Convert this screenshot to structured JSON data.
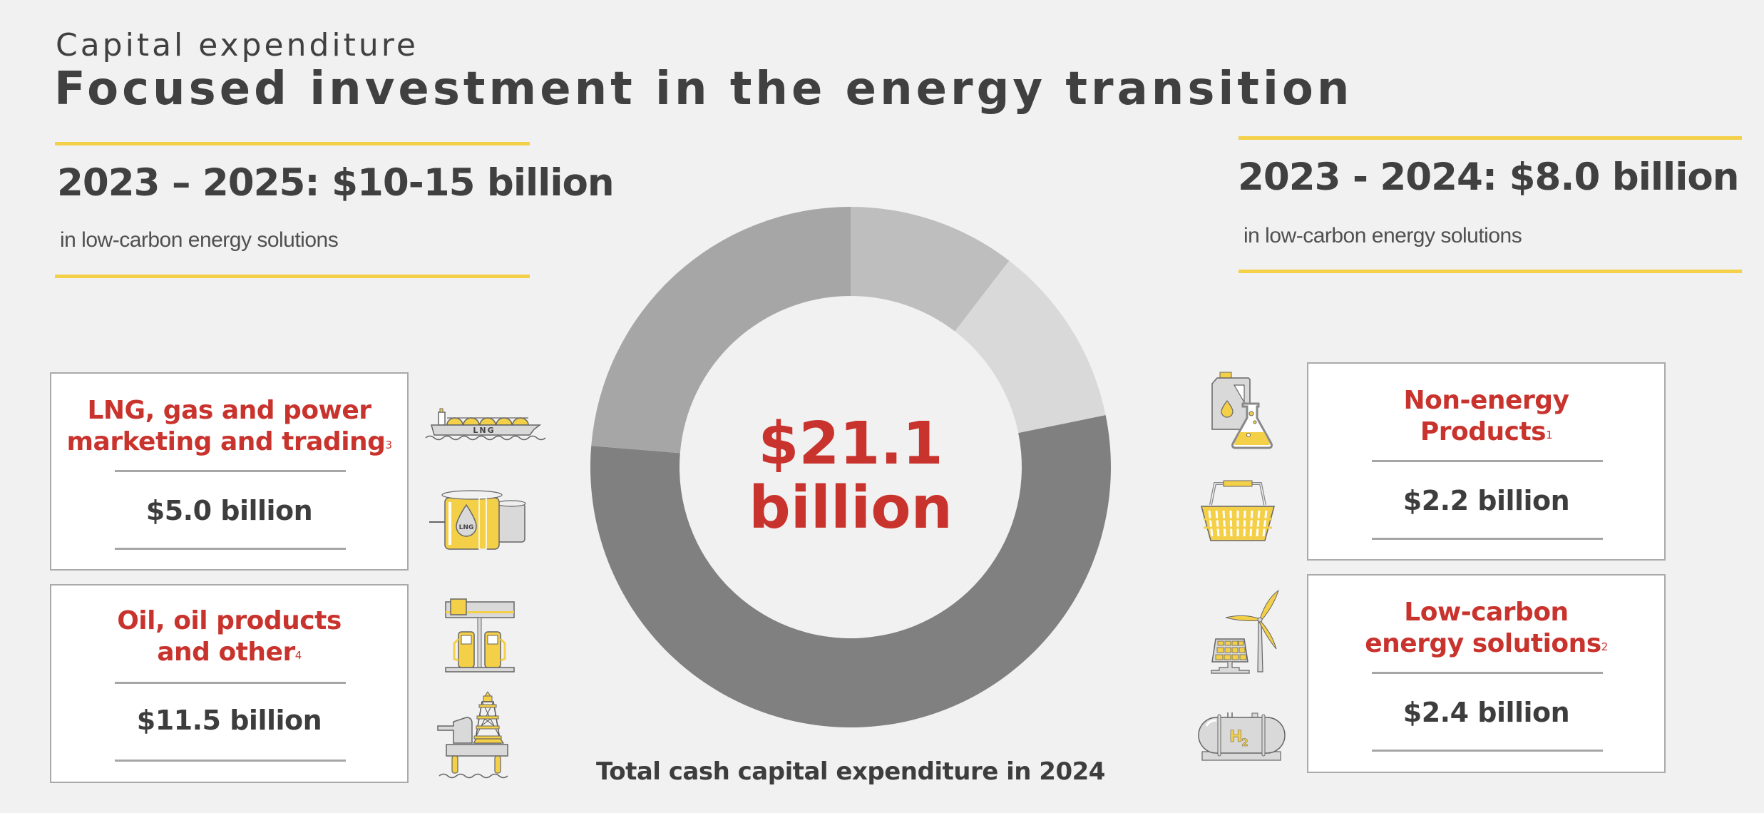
{
  "header": {
    "kicker": "Capital expenditure",
    "title": "Focused investment in the energy transition"
  },
  "targets": {
    "left": {
      "headline": "2023 – 2025: $10-15 billion",
      "subtext": "in low-carbon energy solutions"
    },
    "right": {
      "headline": "2023 - 2024: $8.0 billion",
      "subtext": "in low-carbon energy solutions"
    }
  },
  "donut": {
    "center_amount": "$21.1",
    "center_unit": "billion",
    "caption": "Total cash capital expenditure in 2024"
  },
  "cards": {
    "lng": {
      "title_line1": "LNG, gas and power",
      "title_line2": "marketing and trading",
      "footnote": "3",
      "value": "$5.0 billion",
      "icons": [
        "lng-carrier-ship-icon",
        "lng-storage-tank-icon"
      ]
    },
    "oil": {
      "title_line1": "Oil, oil products",
      "title_line2": "and other",
      "footnote": "4",
      "value": "$11.5 billion",
      "icons": [
        "fuel-station-icon",
        "offshore-oil-rig-icon"
      ]
    },
    "non_energy": {
      "title_line1": "Non-energy",
      "title_line2": "Products",
      "footnote": "1",
      "value": "$2.2 billion",
      "icons": [
        "chemicals-bottle-flask-icon",
        "shopping-basket-icon"
      ]
    },
    "low_carbon": {
      "title_line1": "Low-carbon",
      "title_line2": "energy solutions",
      "footnote": "2",
      "value": "$2.4 billion",
      "icons": [
        "wind-solar-icon",
        "hydrogen-tank-icon"
      ]
    }
  },
  "colors": {
    "background": "#f1f1f1",
    "accent_yellow": "#f4cf48",
    "accent_red": "#c9332d",
    "text_dark": "#404040",
    "card_border": "#aaaaaa"
  },
  "chart_data": {
    "type": "pie",
    "subtype": "donut",
    "title": "Total cash capital expenditure in 2024",
    "center_label": "$21.1 billion",
    "unit": "USD billion",
    "total": 21.1,
    "categories": [
      "Non-energy Products",
      "Low-carbon energy solutions",
      "Oil, oil products and other",
      "LNG, gas and power marketing and trading"
    ],
    "values": [
      2.2,
      2.4,
      11.5,
      5.0
    ],
    "segment_colors": [
      "#bebebe",
      "#d9d9d9",
      "#808080",
      "#a6a6a6"
    ],
    "start_angle": "12 o'clock, clockwise",
    "legend": "none (labels in side cards)"
  }
}
